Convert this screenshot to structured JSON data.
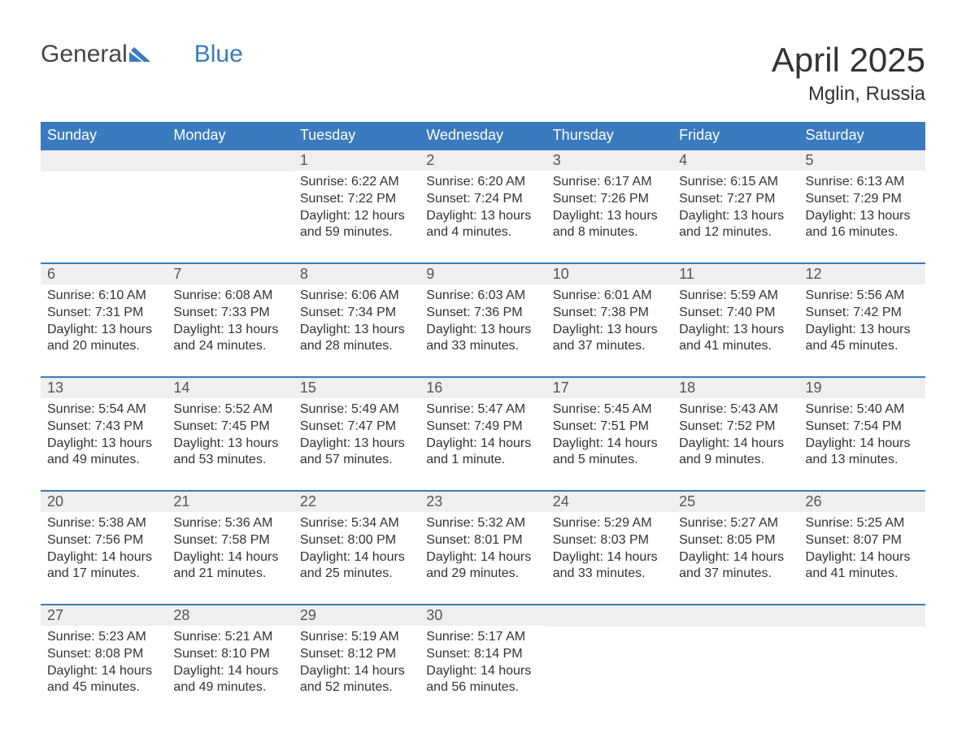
{
  "logo": {
    "text1": "General",
    "text2": "Blue"
  },
  "title": "April 2025",
  "location": "Mglin, Russia",
  "colors": {
    "header_bg": "#3a7bbf",
    "header_text": "#ffffff",
    "daynum_bg": "#efefef",
    "text": "#333333",
    "row_border": "#3a7bbf",
    "page_bg": "#ffffff"
  },
  "day_headers": [
    "Sunday",
    "Monday",
    "Tuesday",
    "Wednesday",
    "Thursday",
    "Friday",
    "Saturday"
  ],
  "weeks": [
    [
      null,
      null,
      {
        "n": "1",
        "sunrise": "6:22 AM",
        "sunset": "7:22 PM",
        "daylight": "12 hours and 59 minutes."
      },
      {
        "n": "2",
        "sunrise": "6:20 AM",
        "sunset": "7:24 PM",
        "daylight": "13 hours and 4 minutes."
      },
      {
        "n": "3",
        "sunrise": "6:17 AM",
        "sunset": "7:26 PM",
        "daylight": "13 hours and 8 minutes."
      },
      {
        "n": "4",
        "sunrise": "6:15 AM",
        "sunset": "7:27 PM",
        "daylight": "13 hours and 12 minutes."
      },
      {
        "n": "5",
        "sunrise": "6:13 AM",
        "sunset": "7:29 PM",
        "daylight": "13 hours and 16 minutes."
      }
    ],
    [
      {
        "n": "6",
        "sunrise": "6:10 AM",
        "sunset": "7:31 PM",
        "daylight": "13 hours and 20 minutes."
      },
      {
        "n": "7",
        "sunrise": "6:08 AM",
        "sunset": "7:33 PM",
        "daylight": "13 hours and 24 minutes."
      },
      {
        "n": "8",
        "sunrise": "6:06 AM",
        "sunset": "7:34 PM",
        "daylight": "13 hours and 28 minutes."
      },
      {
        "n": "9",
        "sunrise": "6:03 AM",
        "sunset": "7:36 PM",
        "daylight": "13 hours and 33 minutes."
      },
      {
        "n": "10",
        "sunrise": "6:01 AM",
        "sunset": "7:38 PM",
        "daylight": "13 hours and 37 minutes."
      },
      {
        "n": "11",
        "sunrise": "5:59 AM",
        "sunset": "7:40 PM",
        "daylight": "13 hours and 41 minutes."
      },
      {
        "n": "12",
        "sunrise": "5:56 AM",
        "sunset": "7:42 PM",
        "daylight": "13 hours and 45 minutes."
      }
    ],
    [
      {
        "n": "13",
        "sunrise": "5:54 AM",
        "sunset": "7:43 PM",
        "daylight": "13 hours and 49 minutes."
      },
      {
        "n": "14",
        "sunrise": "5:52 AM",
        "sunset": "7:45 PM",
        "daylight": "13 hours and 53 minutes."
      },
      {
        "n": "15",
        "sunrise": "5:49 AM",
        "sunset": "7:47 PM",
        "daylight": "13 hours and 57 minutes."
      },
      {
        "n": "16",
        "sunrise": "5:47 AM",
        "sunset": "7:49 PM",
        "daylight": "14 hours and 1 minute."
      },
      {
        "n": "17",
        "sunrise": "5:45 AM",
        "sunset": "7:51 PM",
        "daylight": "14 hours and 5 minutes."
      },
      {
        "n": "18",
        "sunrise": "5:43 AM",
        "sunset": "7:52 PM",
        "daylight": "14 hours and 9 minutes."
      },
      {
        "n": "19",
        "sunrise": "5:40 AM",
        "sunset": "7:54 PM",
        "daylight": "14 hours and 13 minutes."
      }
    ],
    [
      {
        "n": "20",
        "sunrise": "5:38 AM",
        "sunset": "7:56 PM",
        "daylight": "14 hours and 17 minutes."
      },
      {
        "n": "21",
        "sunrise": "5:36 AM",
        "sunset": "7:58 PM",
        "daylight": "14 hours and 21 minutes."
      },
      {
        "n": "22",
        "sunrise": "5:34 AM",
        "sunset": "8:00 PM",
        "daylight": "14 hours and 25 minutes."
      },
      {
        "n": "23",
        "sunrise": "5:32 AM",
        "sunset": "8:01 PM",
        "daylight": "14 hours and 29 minutes."
      },
      {
        "n": "24",
        "sunrise": "5:29 AM",
        "sunset": "8:03 PM",
        "daylight": "14 hours and 33 minutes."
      },
      {
        "n": "25",
        "sunrise": "5:27 AM",
        "sunset": "8:05 PM",
        "daylight": "14 hours and 37 minutes."
      },
      {
        "n": "26",
        "sunrise": "5:25 AM",
        "sunset": "8:07 PM",
        "daylight": "14 hours and 41 minutes."
      }
    ],
    [
      {
        "n": "27",
        "sunrise": "5:23 AM",
        "sunset": "8:08 PM",
        "daylight": "14 hours and 45 minutes."
      },
      {
        "n": "28",
        "sunrise": "5:21 AM",
        "sunset": "8:10 PM",
        "daylight": "14 hours and 49 minutes."
      },
      {
        "n": "29",
        "sunrise": "5:19 AM",
        "sunset": "8:12 PM",
        "daylight": "14 hours and 52 minutes."
      },
      {
        "n": "30",
        "sunrise": "5:17 AM",
        "sunset": "8:14 PM",
        "daylight": "14 hours and 56 minutes."
      },
      null,
      null,
      null
    ]
  ],
  "labels": {
    "sunrise": "Sunrise: ",
    "sunset": "Sunset: ",
    "daylight": "Daylight: "
  }
}
